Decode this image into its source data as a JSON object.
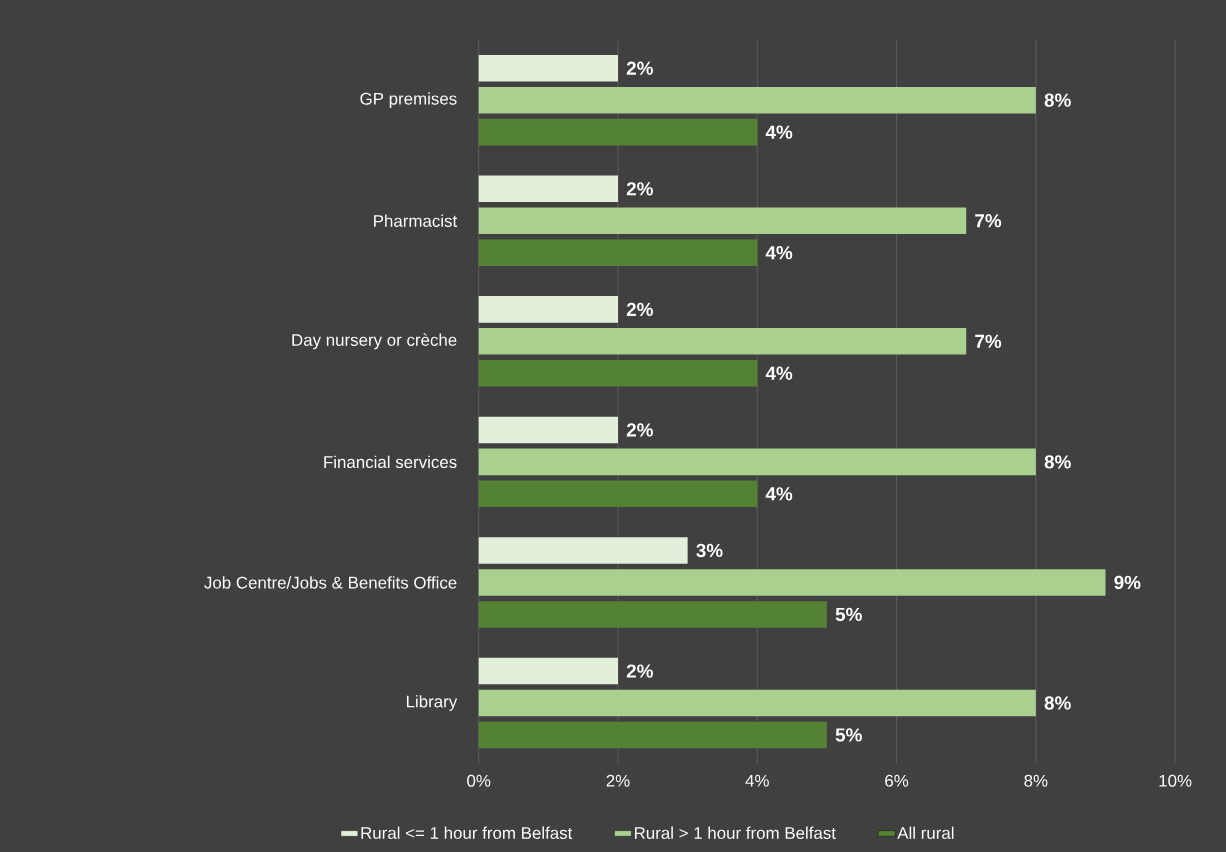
{
  "chart_data": {
    "type": "bar",
    "orientation": "horizontal",
    "categories": [
      "GP premises",
      "Pharmacist",
      "Day nursery or crèche",
      "Financial services",
      "Job Centre/Jobs & Benefits Office",
      "Library"
    ],
    "series": [
      {
        "name": "Rural <= 1 hour from Belfast",
        "color": "#e2efda",
        "values": [
          2,
          2,
          2,
          2,
          3,
          2
        ],
        "value_labels": [
          "2%",
          "2%",
          "2%",
          "2%",
          "3%",
          "2%"
        ]
      },
      {
        "name": "Rural > 1 hour from Belfast",
        "color": "#a9d08e",
        "values": [
          8,
          7,
          7,
          8,
          9,
          8
        ],
        "value_labels": [
          "8%",
          "7%",
          "7%",
          "8%",
          "9%",
          "8%"
        ]
      },
      {
        "name": "All rural",
        "color": "#548235",
        "values": [
          4,
          4,
          4,
          4,
          5,
          5
        ],
        "value_labels": [
          "4%",
          "4%",
          "4%",
          "4%",
          "5%",
          "5%"
        ]
      }
    ],
    "xlim": [
      0,
      10
    ],
    "xticks": [
      {
        "value": 0,
        "label": "0%"
      },
      {
        "value": 2,
        "label": "2%"
      },
      {
        "value": 4,
        "label": "4%"
      },
      {
        "value": 6,
        "label": "6%"
      },
      {
        "value": 8,
        "label": "8%"
      },
      {
        "value": 10,
        "label": "10%"
      }
    ],
    "grid": "x",
    "legend": "bottom"
  }
}
